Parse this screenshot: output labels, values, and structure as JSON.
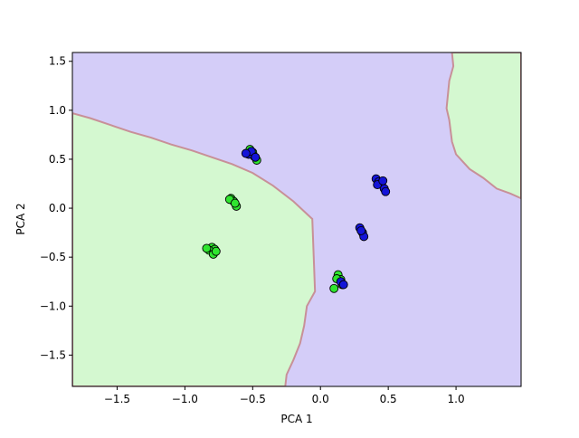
{
  "chart_data": {
    "type": "scatter",
    "title": "",
    "xlabel": "PCA 1",
    "ylabel": "PCA 2",
    "xlim": [
      -1.83,
      1.48
    ],
    "ylim": [
      -1.82,
      1.59
    ],
    "xticks": [
      -1.5,
      -1.0,
      -0.5,
      0.0,
      0.5,
      1.0
    ],
    "yticks": [
      -1.5,
      -1.0,
      -0.5,
      0.0,
      0.5,
      1.0,
      1.5
    ],
    "xtick_labels": [
      "−1.5",
      "−1.0",
      "−0.5",
      "0.0",
      "0.5",
      "1.0"
    ],
    "ytick_labels": [
      "−1.5",
      "−1.0",
      "−0.5",
      "0.0",
      "0.5",
      "1.0",
      "1.5"
    ],
    "grid": false,
    "legend": "none",
    "background": "decision regions",
    "region_colors": {
      "class_0": "#d4f8d0",
      "class_1": "#d4cdf8",
      "boundary": "#c89098"
    },
    "region_class0_left": [
      [
        -1.83,
        0.97
      ],
      [
        -1.7,
        0.92
      ],
      [
        -1.55,
        0.85
      ],
      [
        -1.4,
        0.78
      ],
      [
        -1.25,
        0.72
      ],
      [
        -1.1,
        0.65
      ],
      [
        -0.95,
        0.59
      ],
      [
        -0.8,
        0.52
      ],
      [
        -0.65,
        0.45
      ],
      [
        -0.5,
        0.36
      ],
      [
        -0.35,
        0.23
      ],
      [
        -0.2,
        0.07
      ],
      [
        -0.06,
        -0.11
      ],
      [
        -0.04,
        -0.85
      ],
      [
        -0.1,
        -1.0
      ],
      [
        -0.12,
        -1.2
      ],
      [
        -0.15,
        -1.38
      ],
      [
        -0.2,
        -1.55
      ],
      [
        -0.25,
        -1.7
      ],
      [
        -0.26,
        -1.82
      ],
      [
        -1.83,
        -1.82
      ]
    ],
    "region_class0_right": [
      [
        0.97,
        1.59
      ],
      [
        1.48,
        1.59
      ],
      [
        1.48,
        0.1
      ],
      [
        1.4,
        0.15
      ],
      [
        1.3,
        0.2
      ],
      [
        1.2,
        0.31
      ],
      [
        1.1,
        0.4
      ],
      [
        1.0,
        0.55
      ],
      [
        0.97,
        0.68
      ],
      [
        0.95,
        0.9
      ],
      [
        0.93,
        1.02
      ],
      [
        0.95,
        1.3
      ],
      [
        0.98,
        1.45
      ]
    ],
    "series": [
      {
        "color": "#2fe52f",
        "points": [
          [
            -0.52,
            0.6
          ],
          [
            -0.5,
            0.57
          ],
          [
            -0.47,
            0.49
          ],
          [
            -0.49,
            0.53
          ],
          [
            -0.66,
            0.1
          ],
          [
            -0.64,
            0.07
          ],
          [
            -0.62,
            0.02
          ],
          [
            -0.67,
            0.09
          ],
          [
            -0.63,
            0.05
          ],
          [
            -0.8,
            -0.4
          ],
          [
            -0.78,
            -0.42
          ],
          [
            -0.82,
            -0.43
          ],
          [
            -0.79,
            -0.47
          ],
          [
            -0.77,
            -0.44
          ],
          [
            -0.84,
            -0.41
          ],
          [
            0.13,
            -0.68
          ],
          [
            0.15,
            -0.73
          ],
          [
            0.1,
            -0.82
          ],
          [
            0.16,
            -0.78
          ],
          [
            0.12,
            -0.72
          ]
        ]
      },
      {
        "color": "#1414d8",
        "points": [
          [
            -0.53,
            0.55
          ],
          [
            -0.51,
            0.58
          ],
          [
            -0.48,
            0.52
          ],
          [
            -0.55,
            0.56
          ],
          [
            0.41,
            0.3
          ],
          [
            0.43,
            0.27
          ],
          [
            0.45,
            0.25
          ],
          [
            0.47,
            0.2
          ],
          [
            0.48,
            0.17
          ],
          [
            0.42,
            0.24
          ],
          [
            0.46,
            0.28
          ],
          [
            0.29,
            -0.2
          ],
          [
            0.31,
            -0.25
          ],
          [
            0.32,
            -0.29
          ],
          [
            0.3,
            -0.23
          ],
          [
            0.15,
            -0.75
          ],
          [
            0.17,
            -0.78
          ]
        ]
      }
    ]
  }
}
